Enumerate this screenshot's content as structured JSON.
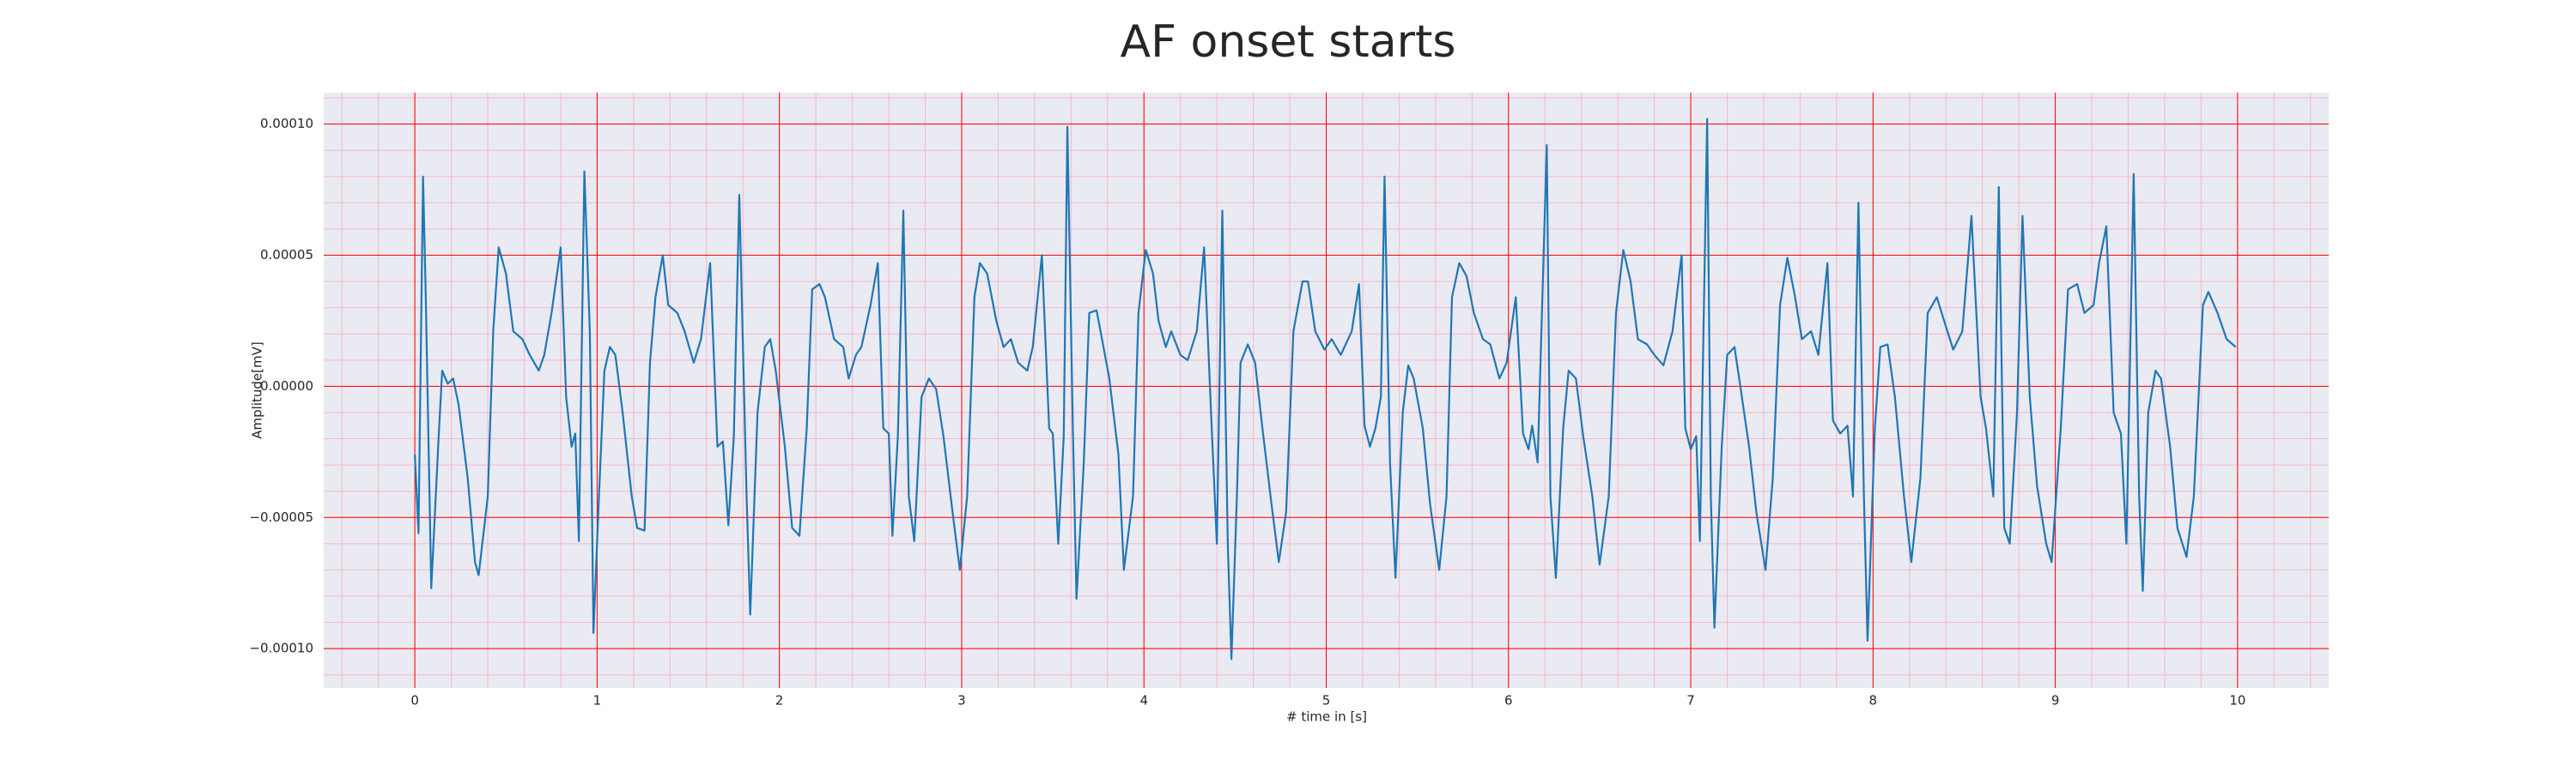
{
  "chart_data": {
    "type": "line",
    "title": "AF onset starts",
    "xlabel": "# time in [s]",
    "ylabel": "Amplitude[mV]",
    "x": [
      0,
      0.02,
      0.045,
      0.06,
      0.09,
      0.13,
      0.15,
      0.18,
      0.21,
      0.24,
      0.29,
      0.33,
      0.35,
      0.4,
      0.43,
      0.46,
      0.5,
      0.54,
      0.59,
      0.63,
      0.68,
      0.71,
      0.75,
      0.8,
      0.83,
      0.86,
      0.88,
      0.9,
      0.93,
      0.96,
      0.98,
      1.01,
      1.04,
      1.07,
      1.1,
      1.14,
      1.19,
      1.22,
      1.26,
      1.29,
      1.32,
      1.36,
      1.39,
      1.44,
      1.48,
      1.53,
      1.57,
      1.62,
      1.66,
      1.69,
      1.72,
      1.75,
      1.78,
      1.82,
      1.84,
      1.88,
      1.92,
      1.95,
      1.98,
      2.03,
      2.07,
      2.11,
      2.15,
      2.18,
      2.22,
      2.25,
      2.3,
      2.35,
      2.38,
      2.42,
      2.45,
      2.5,
      2.54,
      2.57,
      2.6,
      2.62,
      2.65,
      2.68,
      2.71,
      2.74,
      2.78,
      2.82,
      2.86,
      2.9,
      2.95,
      2.99,
      3.03,
      3.07,
      3.1,
      3.14,
      3.19,
      3.23,
      3.27,
      3.31,
      3.36,
      3.39,
      3.44,
      3.48,
      3.5,
      3.53,
      3.56,
      3.58,
      3.61,
      3.63,
      3.67,
      3.7,
      3.74,
      3.77,
      3.81,
      3.86,
      3.89,
      3.94,
      3.97,
      4.01,
      4.05,
      4.08,
      4.12,
      4.15,
      4.2,
      4.24,
      4.29,
      4.33,
      4.37,
      4.4,
      4.43,
      4.46,
      4.48,
      4.51,
      4.53,
      4.57,
      4.61,
      4.65,
      4.7,
      4.74,
      4.78,
      4.82,
      4.87,
      4.9,
      4.94,
      4.99,
      5.03,
      5.08,
      5.14,
      5.18,
      5.21,
      5.24,
      5.27,
      5.3,
      5.32,
      5.35,
      5.38,
      5.42,
      5.45,
      5.48,
      5.53,
      5.57,
      5.62,
      5.66,
      5.69,
      5.73,
      5.77,
      5.81,
      5.86,
      5.9,
      5.95,
      5.99,
      6.04,
      6.08,
      6.11,
      6.13,
      6.16,
      6.21,
      6.23,
      6.26,
      6.3,
      6.33,
      6.37,
      6.41,
      6.46,
      6.5,
      6.55,
      6.59,
      6.63,
      6.67,
      6.71,
      6.76,
      6.8,
      6.85,
      6.9,
      6.95,
      6.97,
      7.0,
      7.03,
      7.05,
      7.09,
      7.11,
      7.13,
      7.17,
      7.2,
      7.24,
      7.27,
      7.32,
      7.36,
      7.41,
      7.45,
      7.49,
      7.53,
      7.57,
      7.61,
      7.66,
      7.7,
      7.75,
      7.78,
      7.82,
      7.86,
      7.89,
      7.92,
      7.95,
      7.97,
      8.01,
      8.04,
      8.08,
      8.12,
      8.17,
      8.21,
      8.26,
      8.3,
      8.35,
      8.39,
      8.44,
      8.49,
      8.54,
      8.59,
      8.62,
      8.66,
      8.69,
      8.72,
      8.75,
      8.79,
      8.82,
      8.86,
      8.9,
      8.95,
      8.98,
      9.03,
      9.07,
      9.12,
      9.16,
      9.21,
      9.24,
      9.28,
      9.32,
      9.36,
      9.39,
      9.43,
      9.46,
      9.48,
      9.51,
      9.55,
      9.58,
      9.63,
      9.67,
      9.72,
      9.76,
      9.81,
      9.84,
      9.89,
      9.94,
      9.99
    ],
    "series": [
      {
        "color": "#1f77b4",
        "values": [
          -2.6e-05,
          -5.6e-05,
          8e-05,
          3.4e-05,
          -7.7e-05,
          -2e-05,
          6e-06,
          1e-06,
          3e-06,
          -7e-06,
          -3.5e-05,
          -6.7e-05,
          -7.2e-05,
          -4.2e-05,
          2.1e-05,
          5.3e-05,
          4.3e-05,
          2.1e-05,
          1.8e-05,
          1.2e-05,
          6e-06,
          1.2e-05,
          2.8e-05,
          5.3e-05,
          -4e-06,
          -2.3e-05,
          -1.8e-05,
          -5.9e-05,
          8.2e-05,
          2.1e-05,
          -9.4e-05,
          -4.2e-05,
          6e-06,
          1.5e-05,
          1.2e-05,
          -1e-05,
          -4.2e-05,
          -5.4e-05,
          -5.5e-05,
          9e-06,
          3.4e-05,
          5e-05,
          3.1e-05,
          2.8e-05,
          2.1e-05,
          9e-06,
          1.8e-05,
          4.7e-05,
          -2.3e-05,
          -2.1e-05,
          -5.3e-05,
          -1.9e-05,
          7.3e-05,
          -4.2e-05,
          -8.7e-05,
          -1e-05,
          1.5e-05,
          1.8e-05,
          6e-06,
          -2.3e-05,
          -5.4e-05,
          -5.7e-05,
          -1.6e-05,
          3.7e-05,
          3.9e-05,
          3.4e-05,
          1.8e-05,
          1.5e-05,
          3e-06,
          1.2e-05,
          1.5e-05,
          3.1e-05,
          4.7e-05,
          -1.6e-05,
          -1.8e-05,
          -5.7e-05,
          -1.9e-05,
          6.7e-05,
          -4.2e-05,
          -5.9e-05,
          -4e-06,
          3e-06,
          -1e-06,
          -1.9e-05,
          -4.8e-05,
          -7e-05,
          -4.2e-05,
          3.4e-05,
          4.7e-05,
          4.3e-05,
          2.5e-05,
          1.5e-05,
          1.8e-05,
          9e-06,
          6e-06,
          1.5e-05,
          5e-05,
          -1.6e-05,
          -1.8e-05,
          -6e-05,
          -1.9e-05,
          9.9e-05,
          -1.6e-05,
          -8.1e-05,
          -2.9e-05,
          2.8e-05,
          2.9e-05,
          1.8e-05,
          3e-06,
          -2.6e-05,
          -7e-05,
          -4.2e-05,
          2.8e-05,
          5.2e-05,
          4.3e-05,
          2.5e-05,
          1.5e-05,
          2.1e-05,
          1.2e-05,
          1e-05,
          2.1e-05,
          5.3e-05,
          -1.3e-05,
          -6e-05,
          6.7e-05,
          -6e-05,
          -0.000104,
          -4.2e-05,
          9e-06,
          1.6e-05,
          9e-06,
          -1.6e-05,
          -4.5e-05,
          -6.7e-05,
          -4.8e-05,
          2.1e-05,
          4e-05,
          4e-05,
          2.1e-05,
          1.4e-05,
          1.8e-05,
          1.2e-05,
          2.1e-05,
          3.9e-05,
          -1.5e-05,
          -2.3e-05,
          -1.6e-05,
          -4e-06,
          8e-05,
          -2.9e-05,
          -7.3e-05,
          -1e-05,
          8e-06,
          3e-06,
          -1.6e-05,
          -4.5e-05,
          -7e-05,
          -4.2e-05,
          3.4e-05,
          4.7e-05,
          4.2e-05,
          2.8e-05,
          1.8e-05,
          1.6e-05,
          3e-06,
          9e-06,
          3.4e-05,
          -1.8e-05,
          -2.4e-05,
          -1.5e-05,
          -2.9e-05,
          9.2e-05,
          -4.2e-05,
          -7.3e-05,
          -1.6e-05,
          6e-06,
          3e-06,
          -1.9e-05,
          -4.2e-05,
          -6.8e-05,
          -4.2e-05,
          2.8e-05,
          5.2e-05,
          4e-05,
          1.8e-05,
          1.6e-05,
          1.2e-05,
          8e-06,
          2.1e-05,
          5e-05,
          -1.6e-05,
          -2.4e-05,
          -1.9e-05,
          -5.9e-05,
          0.000102,
          -4.2e-05,
          -9.2e-05,
          -2.3e-05,
          1.2e-05,
          1.5e-05,
          1e-06,
          -2.3e-05,
          -4.8e-05,
          -7e-05,
          -3.5e-05,
          3.1e-05,
          4.9e-05,
          3.5e-05,
          1.8e-05,
          2.1e-05,
          1.2e-05,
          4.7e-05,
          -1.3e-05,
          -1.8e-05,
          -1.5e-05,
          -4.2e-05,
          7e-05,
          -4.2e-05,
          -9.7e-05,
          -1.6e-05,
          1.5e-05,
          1.6e-05,
          -4e-06,
          -4.2e-05,
          -6.7e-05,
          -3.5e-05,
          2.8e-05,
          3.4e-05,
          2.5e-05,
          1.4e-05,
          2.1e-05,
          6.5e-05,
          -4e-06,
          -1.6e-05,
          -4.2e-05,
          7.6e-05,
          -5.4e-05,
          -6e-05,
          -1e-05,
          6.5e-05,
          -4e-06,
          -3.8e-05,
          -6e-05,
          -6.7e-05,
          -1.6e-05,
          3.7e-05,
          3.9e-05,
          2.8e-05,
          3.1e-05,
          4.7e-05,
          6.1e-05,
          -1e-05,
          -1.8e-05,
          -6e-05,
          8.1e-05,
          -4.2e-05,
          -7.8e-05,
          -1e-05,
          6e-06,
          3e-06,
          -2.3e-05,
          -5.4e-05,
          -6.5e-05,
          -4.2e-05,
          3.1e-05,
          3.6e-05,
          2.8e-05,
          1.8e-05,
          1.5e-05
        ]
      }
    ],
    "xlim": [
      -0.5,
      10.5
    ],
    "xticks": [
      0,
      1,
      2,
      3,
      4,
      5,
      6,
      7,
      8,
      9,
      10
    ],
    "ylim": [
      -0.000115,
      0.000112
    ],
    "yticks": [
      {
        "value": -0.0001,
        "label": "−0.00010"
      },
      {
        "value": -5e-05,
        "label": "−0.00005"
      },
      {
        "value": 0,
        "label": "0.00000"
      },
      {
        "value": 5e-05,
        "label": "0.00005"
      },
      {
        "value": 0.0001,
        "label": "0.00010"
      }
    ],
    "grid": true,
    "minor_grid": true,
    "grid_color": "#ff0000",
    "minor_grid_color": "#f4b8c8",
    "background": "#eaeaf2"
  }
}
